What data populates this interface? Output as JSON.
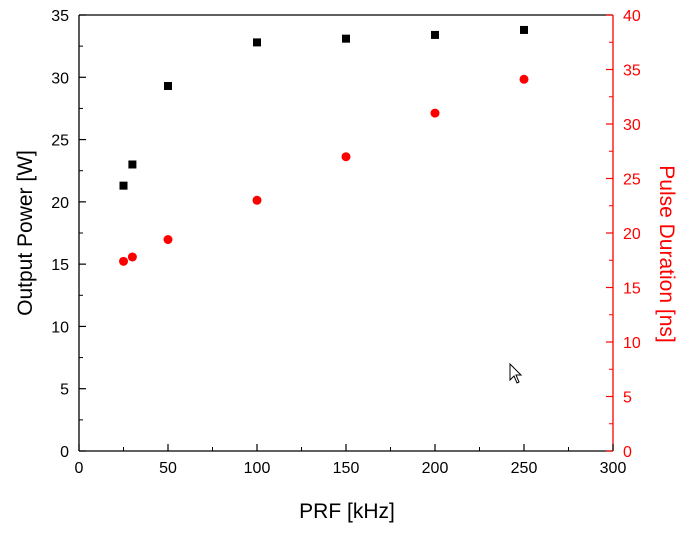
{
  "chart_data": {
    "type": "scatter",
    "xlabel": "PRF [kHz]",
    "ylabel_left": "Output Power [W]",
    "ylabel_right": "Pulse Duration [ns]",
    "xlim": [
      0,
      300
    ],
    "ylim_left": [
      0,
      35
    ],
    "ylim_right": [
      0,
      40
    ],
    "x_ticks": [
      "0",
      "50",
      "100",
      "150",
      "200",
      "250",
      "300"
    ],
    "y_left_ticks": [
      "0",
      "5",
      "10",
      "15",
      "20",
      "25",
      "30",
      "35"
    ],
    "y_right_ticks": [
      "0",
      "5",
      "10",
      "15",
      "20",
      "25",
      "30",
      "35",
      "40"
    ],
    "grid": false,
    "series": [
      {
        "axis": "left",
        "marker": "square",
        "color": "#000000",
        "x": [
          25,
          30,
          50,
          100,
          150,
          200,
          250
        ],
        "y": [
          21.3,
          23.0,
          29.3,
          32.8,
          33.1,
          33.4,
          33.8
        ]
      },
      {
        "axis": "right",
        "marker": "circle",
        "color": "#ff0000",
        "x": [
          25,
          30,
          50,
          100,
          150,
          200,
          250
        ],
        "y": [
          17.4,
          17.8,
          19.4,
          23.0,
          27.0,
          31.0,
          34.1
        ]
      }
    ],
    "colors": {
      "left_axis": "#000000",
      "right_axis": "#ff0000"
    }
  }
}
